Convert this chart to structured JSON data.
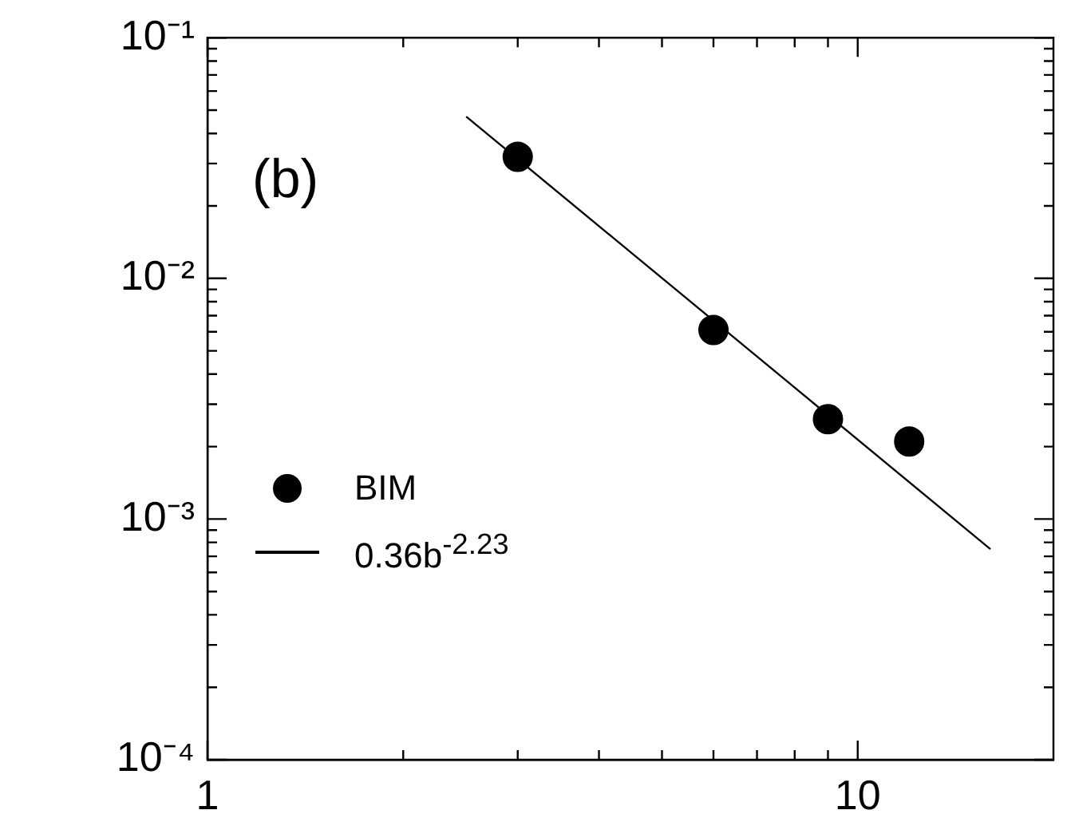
{
  "chart_data": {
    "type": "scatter",
    "log": "xy",
    "xlim": [
      1,
      20
    ],
    "ylim": [
      0.0001,
      0.1
    ],
    "xticks": [
      1,
      10
    ],
    "yticks": [
      {
        "value": 0.1,
        "label": "10⁻¹"
      },
      {
        "value": 0.01,
        "label": "10⁻²"
      },
      {
        "value": 0.001,
        "label": "10⁻³"
      },
      {
        "value": 0.0001,
        "label": "10⁻⁴"
      }
    ],
    "annotations": [
      "(b)"
    ],
    "legend": "bottom left",
    "grid": false,
    "series": [
      {
        "name": "BIM",
        "marker": "circle",
        "color": "#000000",
        "x": [
          3,
          6,
          9,
          12
        ],
        "values": [
          0.032,
          0.0061,
          0.0026,
          0.0021
        ]
      },
      {
        "name": "0.36b$^{-2.23}$",
        "type": "line",
        "marker": "none",
        "color": "#000000",
        "x": [
          2.5,
          16
        ],
        "values": [
          0.047,
          0.00075
        ]
      }
    ]
  }
}
